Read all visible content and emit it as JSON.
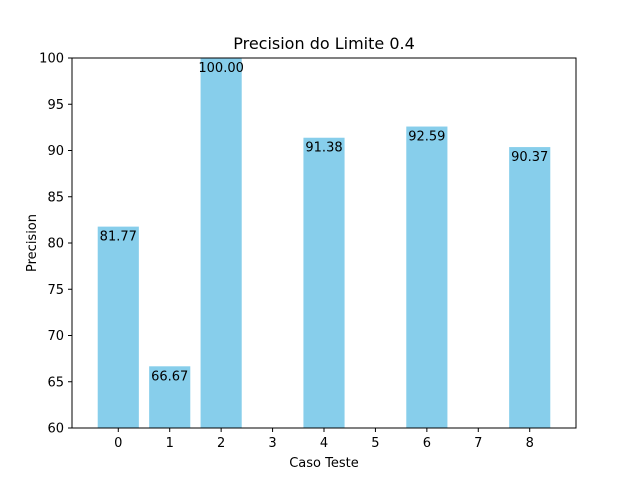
{
  "chart_data": {
    "type": "bar",
    "title": "Precision do Limite 0.4",
    "xlabel": "Caso Teste",
    "ylabel": "Precision",
    "x_ticks": [
      "0",
      "1",
      "2",
      "3",
      "4",
      "5",
      "6",
      "7",
      "8"
    ],
    "y_ticks": [
      "60",
      "65",
      "70",
      "75",
      "80",
      "85",
      "90",
      "95",
      "100"
    ],
    "ylim": [
      60,
      100
    ],
    "xlim": [
      -0.9,
      8.9
    ],
    "grid": false,
    "bar_color": "#87CEEB",
    "bars": [
      {
        "x": 0,
        "value": 81.77,
        "label": "81.77"
      },
      {
        "x": 1,
        "value": 66.67,
        "label": "66.67"
      },
      {
        "x": 2,
        "value": 100.0,
        "label": "100.00"
      },
      {
        "x": 4,
        "value": 91.38,
        "label": "91.38"
      },
      {
        "x": 6,
        "value": 92.59,
        "label": "92.59"
      },
      {
        "x": 8,
        "value": 90.37,
        "label": "90.37"
      }
    ]
  }
}
